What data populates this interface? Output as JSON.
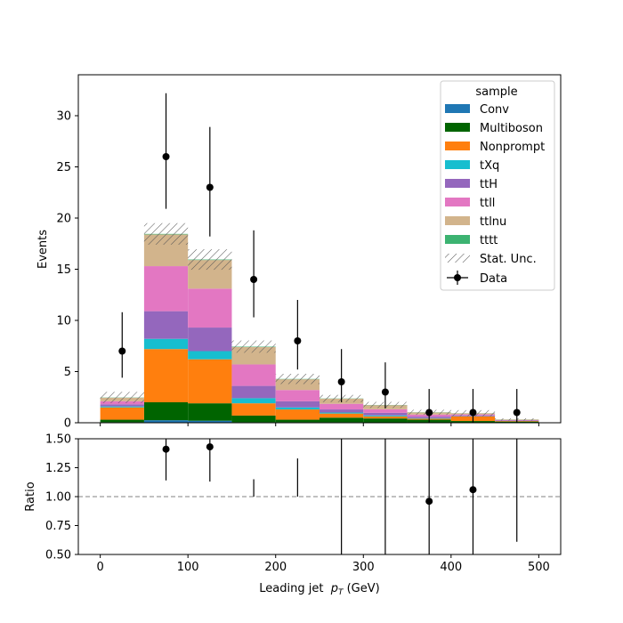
{
  "chart_data": {
    "type": "bar",
    "stacked": true,
    "xlabel": "Leading jet  p_T (GeV)",
    "xlabel_parts": {
      "pre": "Leading jet  ",
      "var": "p",
      "sub": "T",
      "post": " (GeV)"
    },
    "bin_edges": [
      0,
      50,
      100,
      150,
      200,
      250,
      300,
      350,
      400,
      450,
      500
    ],
    "xlim": [
      -25,
      525
    ],
    "xticks": [
      0,
      100,
      200,
      300,
      400,
      500
    ],
    "top_panel": {
      "ylabel": "Events",
      "ylim": [
        0,
        34
      ],
      "yticks": [
        0,
        5,
        10,
        15,
        20,
        25,
        30
      ],
      "series": [
        {
          "name": "Conv",
          "color": "#1f77b4",
          "values": [
            0.05,
            0.25,
            0.2,
            0.05,
            0.05,
            0.05,
            0.02,
            0.02,
            0.02,
            0.02
          ]
        },
        {
          "name": "Multiboson",
          "color": "#006400",
          "values": [
            0.25,
            1.75,
            1.7,
            0.65,
            0.25,
            0.45,
            0.4,
            0.28,
            0.15,
            0.1
          ]
        },
        {
          "name": "Nonprompt",
          "color": "#ff7f0e",
          "values": [
            1.2,
            5.2,
            4.3,
            1.2,
            1.0,
            0.4,
            0.2,
            0.1,
            0.45,
            0.05
          ]
        },
        {
          "name": "tXq",
          "color": "#17becf",
          "values": [
            0.1,
            1.0,
            0.8,
            0.5,
            0.2,
            0.1,
            0.1,
            0.05,
            0.02,
            0.01
          ]
        },
        {
          "name": "ttH",
          "color": "#9467bd",
          "values": [
            0.2,
            2.7,
            2.3,
            1.2,
            0.6,
            0.3,
            0.25,
            0.15,
            0.08,
            0.04
          ]
        },
        {
          "name": "ttll",
          "color": "#e377c2",
          "values": [
            0.3,
            4.4,
            3.8,
            2.1,
            1.1,
            0.55,
            0.35,
            0.2,
            0.1,
            0.05
          ]
        },
        {
          "name": "ttlnu",
          "color": "#d2b48c",
          "values": [
            0.35,
            3.1,
            2.8,
            1.7,
            1.05,
            0.5,
            0.4,
            0.2,
            0.1,
            0.05
          ]
        },
        {
          "name": "tttt",
          "color": "#3cb371",
          "values": [
            0.02,
            0.05,
            0.05,
            0.04,
            0.03,
            0.02,
            0.02,
            0.02,
            0.01,
            0.01
          ]
        }
      ],
      "stat_unc": [
        0.55,
        1.05,
        1.0,
        0.6,
        0.5,
        0.35,
        0.3,
        0.25,
        0.3,
        0.1
      ],
      "data": {
        "name": "Data",
        "x": [
          25,
          75,
          125,
          175,
          225,
          275,
          325,
          375,
          425,
          475
        ],
        "y": [
          7,
          26,
          23,
          14,
          8,
          4,
          3,
          1,
          1,
          1
        ],
        "err_low": [
          2.6,
          5.1,
          4.8,
          3.7,
          2.8,
          2.0,
          1.6,
          1.0,
          1.0,
          1.0
        ],
        "err_high": [
          3.8,
          6.2,
          5.9,
          4.8,
          4.0,
          3.2,
          2.9,
          2.3,
          2.3,
          2.3
        ]
      },
      "legend": {
        "title": "sample",
        "placement": "top-right",
        "stat_unc_label": "Stat. Unc.",
        "data_label": "Data"
      }
    },
    "bottom_panel": {
      "ylabel": "Ratio",
      "ylim": [
        0.5,
        1.5
      ],
      "yticks": [
        "0.50",
        "0.75",
        "1.00",
        "1.25",
        "1.50"
      ],
      "reference_line": 1.0,
      "x": [
        75,
        125,
        175,
        225,
        275,
        325,
        375,
        425,
        475
      ],
      "ratio": [
        1.41,
        1.43,
        null,
        null,
        null,
        null,
        0.96,
        1.06,
        null
      ],
      "err_low": [
        0.27,
        0.3,
        null,
        null,
        0.7,
        0.71,
        1.0,
        1.06,
        0.39
      ],
      "err_high": [
        0.3,
        0.31,
        0.15,
        0.33,
        0.7,
        0.71,
        1.0,
        1.0,
        1.0
      ]
    }
  }
}
